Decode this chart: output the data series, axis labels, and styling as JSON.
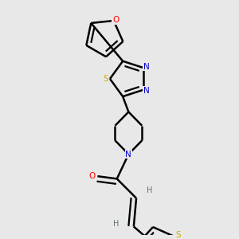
{
  "background_color": "#e8e8e8",
  "line_color": "#000000",
  "atom_colors": {
    "N": "#0000cc",
    "O": "#ff0000",
    "S": "#ccaa00",
    "H": "#607070"
  },
  "line_width": 1.8,
  "figsize": [
    3.0,
    3.0
  ],
  "dpi": 100
}
